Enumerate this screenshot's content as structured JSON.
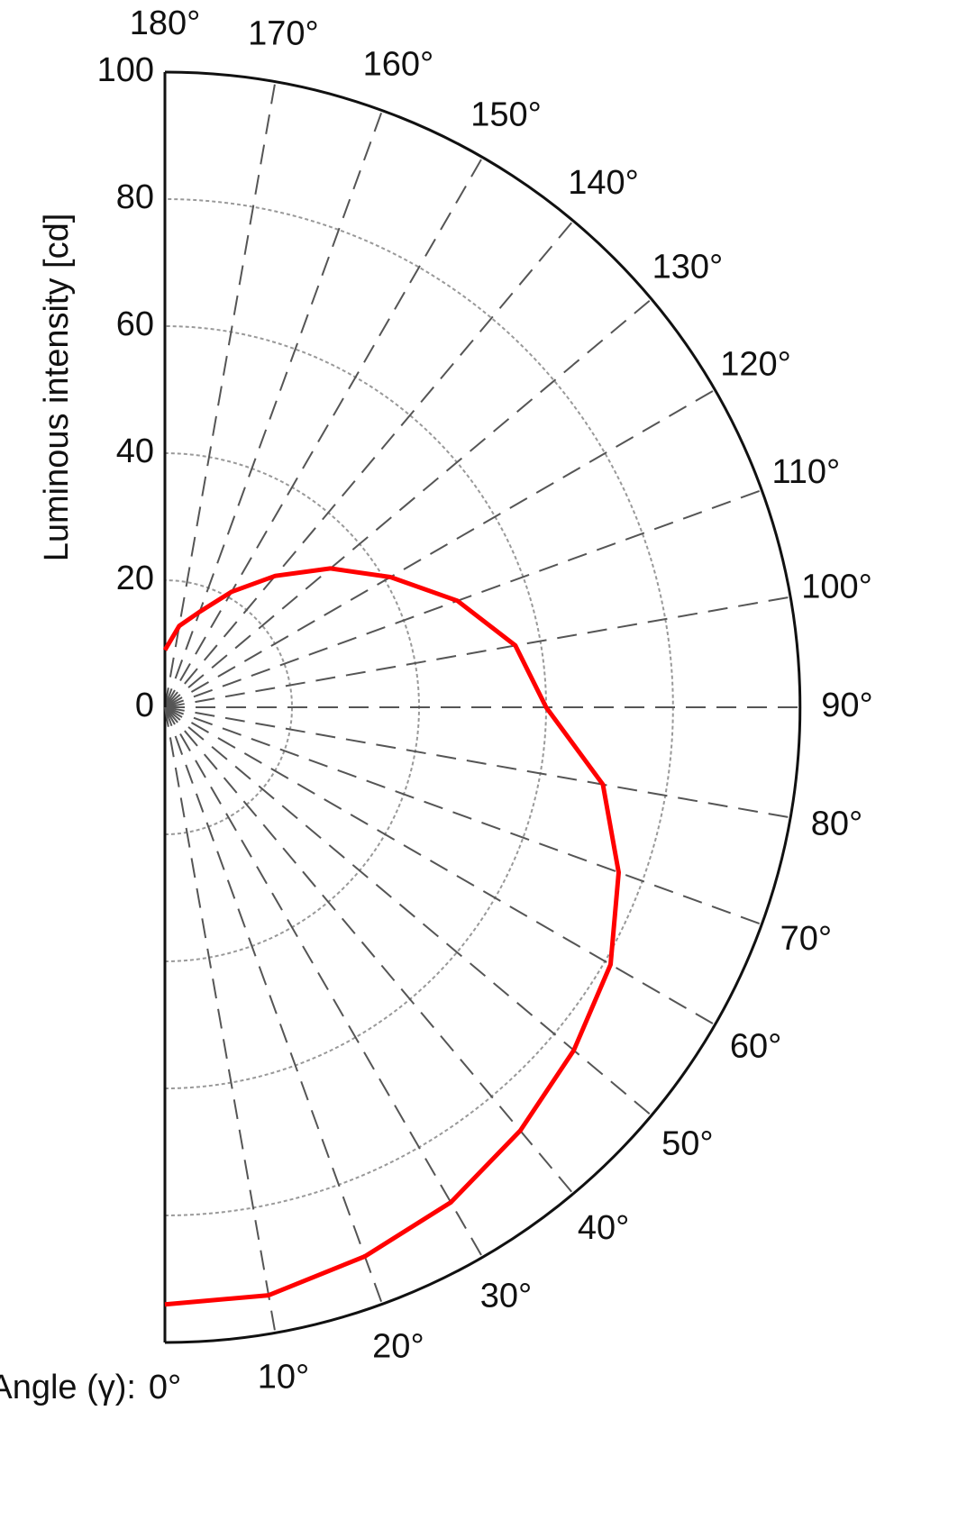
{
  "chart_data": {
    "type": "polar",
    "y_label": "Luminous intensity [cd]",
    "x_label": "Angle (γ):",
    "xlim": [
      0,
      180
    ],
    "xticks": [
      {
        "value": 0,
        "label": "0°"
      },
      {
        "value": 10,
        "label": "10°"
      },
      {
        "value": 20,
        "label": "20°"
      },
      {
        "value": 30,
        "label": "30°"
      },
      {
        "value": 40,
        "label": "40°"
      },
      {
        "value": 50,
        "label": "50°"
      },
      {
        "value": 60,
        "label": "60°"
      },
      {
        "value": 70,
        "label": "70°"
      },
      {
        "value": 80,
        "label": "80°"
      },
      {
        "value": 90,
        "label": "90°"
      },
      {
        "value": 100,
        "label": "100°"
      },
      {
        "value": 110,
        "label": "110°"
      },
      {
        "value": 120,
        "label": "120°"
      },
      {
        "value": 130,
        "label": "130°"
      },
      {
        "value": 140,
        "label": "140°"
      },
      {
        "value": 150,
        "label": "150°"
      },
      {
        "value": 160,
        "label": "160°"
      },
      {
        "value": 170,
        "label": "170°"
      },
      {
        "value": 180,
        "label": "180°"
      }
    ],
    "ylim": [
      0,
      100
    ],
    "yticks": [
      0,
      20,
      40,
      60,
      80,
      100
    ],
    "grid": true,
    "series": [
      {
        "color": "#ff0000",
        "x": [
          0,
          10,
          20,
          30,
          40,
          50,
          60,
          70,
          80,
          90,
          100,
          110,
          120,
          130,
          140,
          150,
          160,
          170,
          180
        ],
        "values": [
          94,
          94,
          92,
          90,
          87,
          84,
          81,
          76,
          70,
          60,
          56,
          49,
          41,
          34,
          27,
          21,
          16,
          13,
          9
        ]
      }
    ]
  }
}
